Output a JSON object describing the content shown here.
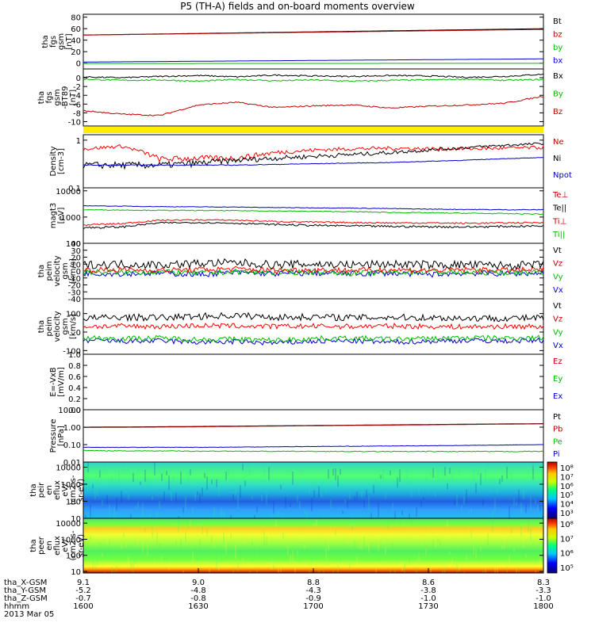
{
  "title": "P5 (TH-A) fields and on-board moments overview",
  "chart_data": [
    {
      "type": "line",
      "name": "fgs-gsm-total",
      "ylabel": [
        "tha",
        "fgs",
        "gsm",
        "[nT]"
      ],
      "ylim": [
        -10,
        85
      ],
      "yticks": [
        0,
        20,
        40,
        60,
        80
      ],
      "legend": [
        {
          "label": "Bt",
          "color": "#000000"
        },
        {
          "label": "bz",
          "color": "#c00000"
        },
        {
          "label": "by",
          "color": "#00bb00"
        },
        {
          "label": "bx",
          "color": "#0000cc"
        }
      ],
      "series": [
        {
          "name": "Bt",
          "color": "#000000",
          "values": [
            49,
            50,
            51,
            52,
            53,
            54,
            55,
            56,
            57,
            58,
            59,
            60
          ]
        },
        {
          "name": "bx",
          "color": "#0000cc",
          "values": [
            2,
            2.5,
            3,
            3.5,
            4,
            4.5,
            5,
            5.5,
            6,
            6.5,
            7,
            7.5
          ]
        },
        {
          "name": "by",
          "color": "#00bb00",
          "values": [
            -0.5,
            -0.5,
            -0.5,
            -0.4,
            -0.4,
            -0.3,
            -0.3,
            -0.3,
            -0.2,
            -0.2,
            -0.2,
            -0.2
          ]
        },
        {
          "name": "bz",
          "color": "#c00000",
          "values": [
            48.8,
            49.7,
            50.6,
            51.5,
            52.4,
            53.3,
            54.2,
            55.1,
            56,
            56.9,
            57.8,
            58.6
          ]
        }
      ]
    },
    {
      "type": "line",
      "name": "fgs-gsm-detrended",
      "ylabel": [
        "tha",
        "fgs",
        "gsm",
        "-BT89",
        "[nT]"
      ],
      "ylim": [
        -11,
        2
      ],
      "yticks": [
        -10,
        -8,
        -6,
        -4,
        -2,
        0
      ],
      "legend": [
        {
          "label": "Bx",
          "color": "#000000"
        },
        {
          "label": "By",
          "color": "#00bb00"
        },
        {
          "label": "Bz",
          "color": "#c00000"
        }
      ],
      "series": [
        {
          "name": "Bx",
          "color": "#000000",
          "values": [
            0.2,
            0,
            0.3,
            0.5,
            0.2,
            0.6,
            0.4,
            0.3,
            0.5,
            0.4,
            0.1,
            0.3,
            0.8
          ]
        },
        {
          "name": "By",
          "color": "#00bb00",
          "values": [
            -0.3,
            -0.6,
            -0.5,
            -0.8,
            -0.4,
            -0.7,
            -0.5,
            -0.8,
            -0.6,
            -0.5,
            -0.3,
            -0.6,
            -0.4
          ]
        },
        {
          "name": "Bz",
          "color": "#c00000",
          "values": [
            -7.5,
            -8.3,
            -8.6,
            -6.2,
            -5.6,
            -6.8,
            -6.4,
            -6.2,
            -6.9,
            -6.5,
            -6.2,
            -5.8,
            -4.2
          ]
        }
      ]
    },
    {
      "type": "line",
      "name": "density",
      "log": true,
      "ylabel": [
        "Density",
        "[cm-3]"
      ],
      "ylim": [
        0.1,
        1.3
      ],
      "yticks": [
        0.1,
        1.0
      ],
      "legend": [
        {
          "label": "Ne",
          "color": "#c00000"
        },
        {
          "label": "Ni",
          "color": "#000000"
        },
        {
          "label": "Npot",
          "color": "#0000cc"
        }
      ],
      "series": [
        {
          "name": "Ne",
          "color": "#ff0000",
          "values": [
            0.65,
            0.75,
            0.4,
            0.42,
            0.42,
            0.55,
            0.62,
            0.66,
            0.68,
            0.66,
            0.66,
            0.68,
            0.7
          ]
        },
        {
          "name": "Ni",
          "color": "#000000",
          "values": [
            0.3,
            0.3,
            0.3,
            0.33,
            0.38,
            0.42,
            0.46,
            0.5,
            0.55,
            0.62,
            0.7,
            0.78,
            0.85
          ]
        },
        {
          "name": "Npot",
          "color": "#0000cc",
          "values": [
            0.3,
            0.3,
            0.3,
            0.3,
            0.3,
            0.31,
            0.32,
            0.33,
            0.34,
            0.36,
            0.38,
            0.41,
            0.43
          ]
        }
      ]
    },
    {
      "type": "line",
      "name": "temperature",
      "log": true,
      "ylabel": [
        "magt3",
        "[eV]"
      ],
      "ylim": [
        100,
        13000
      ],
      "yticks": [
        100,
        1000,
        10000
      ],
      "ytick_labels": [
        "100",
        "1000",
        "10000"
      ],
      "legend": [
        {
          "label": "Te⊥",
          "color": "#c00000"
        },
        {
          "label": "Te||",
          "color": "#000000"
        },
        {
          "label": "Ti⊥",
          "color": "#c00000"
        },
        {
          "label": "Ti||",
          "color": "#00bb00"
        }
      ],
      "series": [
        {
          "name": "Ti⊥",
          "color": "#0000cc",
          "values": [
            2700,
            2600,
            2500,
            2450,
            2400,
            2300,
            2250,
            2200,
            2100,
            2000,
            1950,
            1900,
            1900
          ]
        },
        {
          "name": "Ti||",
          "color": "#00bb00",
          "values": [
            1900,
            1850,
            1800,
            1780,
            1750,
            1700,
            1650,
            1600,
            1500,
            1450,
            1400,
            1350,
            1300
          ]
        },
        {
          "name": "Te⊥",
          "color": "#ff0000",
          "values": [
            500,
            560,
            760,
            780,
            760,
            680,
            640,
            620,
            600,
            600,
            580,
            600,
            620
          ]
        },
        {
          "name": "Te||",
          "color": "#000000",
          "values": [
            390,
            420,
            600,
            620,
            580,
            520,
            480,
            460,
            440,
            430,
            420,
            440,
            460
          ]
        }
      ]
    },
    {
      "type": "line",
      "name": "peim-velocity-zoom",
      "ylabel": [
        "tha",
        "peim",
        "velocity",
        "gsm",
        "[km/s]"
      ],
      "ylim": [
        -40,
        40
      ],
      "yticks": [
        -40,
        -30,
        -20,
        -10,
        0,
        10,
        20,
        30,
        40
      ],
      "legend": [
        {
          "label": "Vt",
          "color": "#000000"
        },
        {
          "label": "Vz",
          "color": "#c00000"
        },
        {
          "label": "Vy",
          "color": "#00bb00"
        },
        {
          "label": "Vx",
          "color": "#0000cc"
        }
      ],
      "series": [
        {
          "name": "Vx",
          "color": "#0000cc",
          "values": [
            -3,
            -4,
            -3,
            -5,
            -2,
            -4,
            -3,
            -4,
            -3,
            -5,
            -3,
            -4,
            -3
          ]
        },
        {
          "name": "Vy",
          "color": "#00bb00",
          "values": [
            -1,
            -2,
            -1,
            -3,
            -1,
            -2,
            -1,
            -3,
            -2,
            -1,
            -2,
            -2,
            -1
          ]
        },
        {
          "name": "Vz",
          "color": "#ff0000",
          "values": [
            1,
            2,
            1,
            2,
            3,
            1,
            2,
            1,
            2,
            1,
            2,
            1,
            2
          ]
        },
        {
          "name": "Vt",
          "color": "#000000",
          "values": [
            9,
            10,
            9,
            11,
            12,
            9,
            10,
            9,
            10,
            9,
            9,
            8,
            9
          ]
        }
      ]
    },
    {
      "type": "line",
      "name": "peim-velocity",
      "ylabel": [
        "tha",
        "peim",
        "velocity",
        "gsm",
        "[km/s]"
      ],
      "ylim": [
        -120,
        180
      ],
      "yticks": [
        -100,
        0,
        100
      ],
      "legend": [
        {
          "label": "Vt",
          "color": "#000000"
        },
        {
          "label": "Vz",
          "color": "#c00000"
        },
        {
          "label": "Vy",
          "color": "#00bb00"
        },
        {
          "label": "Vx",
          "color": "#0000cc"
        }
      ],
      "series": [
        {
          "name": "Vx",
          "color": "#0000cc",
          "values": [
            -45,
            -50,
            -48,
            -55,
            -52,
            -60,
            -50,
            -48,
            -55,
            -50,
            -45,
            -48,
            -45
          ]
        },
        {
          "name": "Vy",
          "color": "#00bb00",
          "values": [
            -30,
            -35,
            -32,
            -40,
            -38,
            -45,
            -35,
            -33,
            -38,
            -35,
            -30,
            -33,
            -30
          ]
        },
        {
          "name": "Vz",
          "color": "#ff0000",
          "values": [
            30,
            32,
            30,
            35,
            33,
            30,
            32,
            30,
            33,
            30,
            28,
            30,
            30
          ]
        },
        {
          "name": "Vt",
          "color": "#000000",
          "values": [
            75,
            80,
            78,
            85,
            90,
            80,
            82,
            78,
            80,
            78,
            75,
            75,
            76
          ]
        }
      ]
    },
    {
      "type": "line",
      "name": "e-vxb",
      "ylabel": [
        "E=-VxB",
        "[mV/m]"
      ],
      "ylim": [
        0,
        1
      ],
      "yticks": [
        0,
        0.2,
        0.4,
        0.6,
        0.8,
        1.0
      ],
      "ytick_labels": [
        "0.0",
        "0.2",
        "0.4",
        "0.6",
        "0.8",
        "1.0"
      ],
      "legend": [
        {
          "label": "Ez",
          "color": "#c00000"
        },
        {
          "label": "Ey",
          "color": "#00bb00"
        },
        {
          "label": "Ex",
          "color": "#0000cc"
        }
      ],
      "series": []
    },
    {
      "type": "line",
      "name": "pressure",
      "log": true,
      "ylabel": [
        "Pressure",
        "[nPa]"
      ],
      "ylim": [
        0.01,
        10
      ],
      "yticks": [
        0.01,
        0.1,
        1,
        10
      ],
      "ytick_labels": [
        "0.01",
        "0.10",
        "1.00",
        "10.00"
      ],
      "legend": [
        {
          "label": "Pt",
          "color": "#000000"
        },
        {
          "label": "Pb",
          "color": "#c00000"
        },
        {
          "label": "Pe",
          "color": "#00bb00"
        },
        {
          "label": "Pi",
          "color": "#0000cc"
        }
      ],
      "series": [
        {
          "name": "Pt",
          "color": "#000000",
          "values": [
            1.0,
            1.03,
            1.06,
            1.1,
            1.15,
            1.2,
            1.25,
            1.3,
            1.36,
            1.42,
            1.48,
            1.54,
            1.6
          ]
        },
        {
          "name": "Pb",
          "color": "#c00000",
          "values": [
            0.95,
            0.98,
            1.01,
            1.05,
            1.1,
            1.15,
            1.2,
            1.25,
            1.3,
            1.36,
            1.42,
            1.48,
            1.54
          ]
        },
        {
          "name": "Pi",
          "color": "#0000cc",
          "values": [
            0.07,
            0.07,
            0.07,
            0.07,
            0.072,
            0.075,
            0.078,
            0.08,
            0.083,
            0.086,
            0.09,
            0.094,
            0.1
          ]
        },
        {
          "name": "Pe",
          "color": "#00bb00",
          "values": [
            0.045,
            0.044,
            0.043,
            0.042,
            0.042,
            0.041,
            0.041,
            0.04,
            0.04,
            0.04,
            0.04,
            0.04,
            0.041
          ]
        }
      ]
    },
    {
      "type": "heatmap",
      "name": "peir-energy-flux",
      "ylabel": [
        "tha",
        "peir",
        "en",
        "eflux",
        "eV/",
        "(cm2-s-",
        "sr-eV)"
      ],
      "ylim": [
        10,
        20000
      ],
      "yticks": [
        10,
        100,
        1000,
        10000
      ],
      "ytick_labels": [
        "10",
        "100",
        "1000",
        "10000"
      ],
      "colorbar": {
        "range": [
          1000,
          100000000
        ],
        "tick_labels": [
          "10⁸",
          "10⁷",
          "10⁶",
          "10⁵",
          "10⁴",
          "10³"
        ]
      }
    },
    {
      "type": "heatmap",
      "name": "peer-energy-flux",
      "ylabel": [
        "tha",
        "peer",
        "en",
        "eflux",
        "eV/",
        "(cm2-s-",
        "sr-eV)"
      ],
      "ylim": [
        8,
        20000
      ],
      "yticks": [
        10,
        100,
        1000,
        10000
      ],
      "ytick_labels": [
        "10",
        "100",
        "1000",
        "10000"
      ],
      "colorbar": {
        "range": [
          10000,
          1000000000
        ],
        "tick_labels": [
          "10⁸",
          "10⁷",
          "10⁶",
          "10⁵"
        ]
      }
    }
  ],
  "x_axis": {
    "row_labels": [
      "tha_X-GSM",
      "tha_Y-GSM",
      "tha_Z-GSM",
      "hhmm"
    ],
    "ticks": [
      {
        "X": "9.1",
        "Y": "-5.2",
        "Z": "-0.7",
        "hhmm": "1600"
      },
      {
        "X": "9.0",
        "Y": "-4.8",
        "Z": "-0.8",
        "hhmm": "1630"
      },
      {
        "X": "8.8",
        "Y": "-4.3",
        "Z": "-0.9",
        "hhmm": "1700"
      },
      {
        "X": "8.6",
        "Y": "-3.8",
        "Z": "-1.0",
        "hhmm": "1730"
      },
      {
        "X": "8.3",
        "Y": "-3.3",
        "Z": "-1.0",
        "hhmm": "1800"
      }
    ],
    "date": "2013 Mar 05",
    "range_minutes": [
      0,
      120
    ]
  },
  "colors": {
    "status_bar": "#ffee00"
  }
}
